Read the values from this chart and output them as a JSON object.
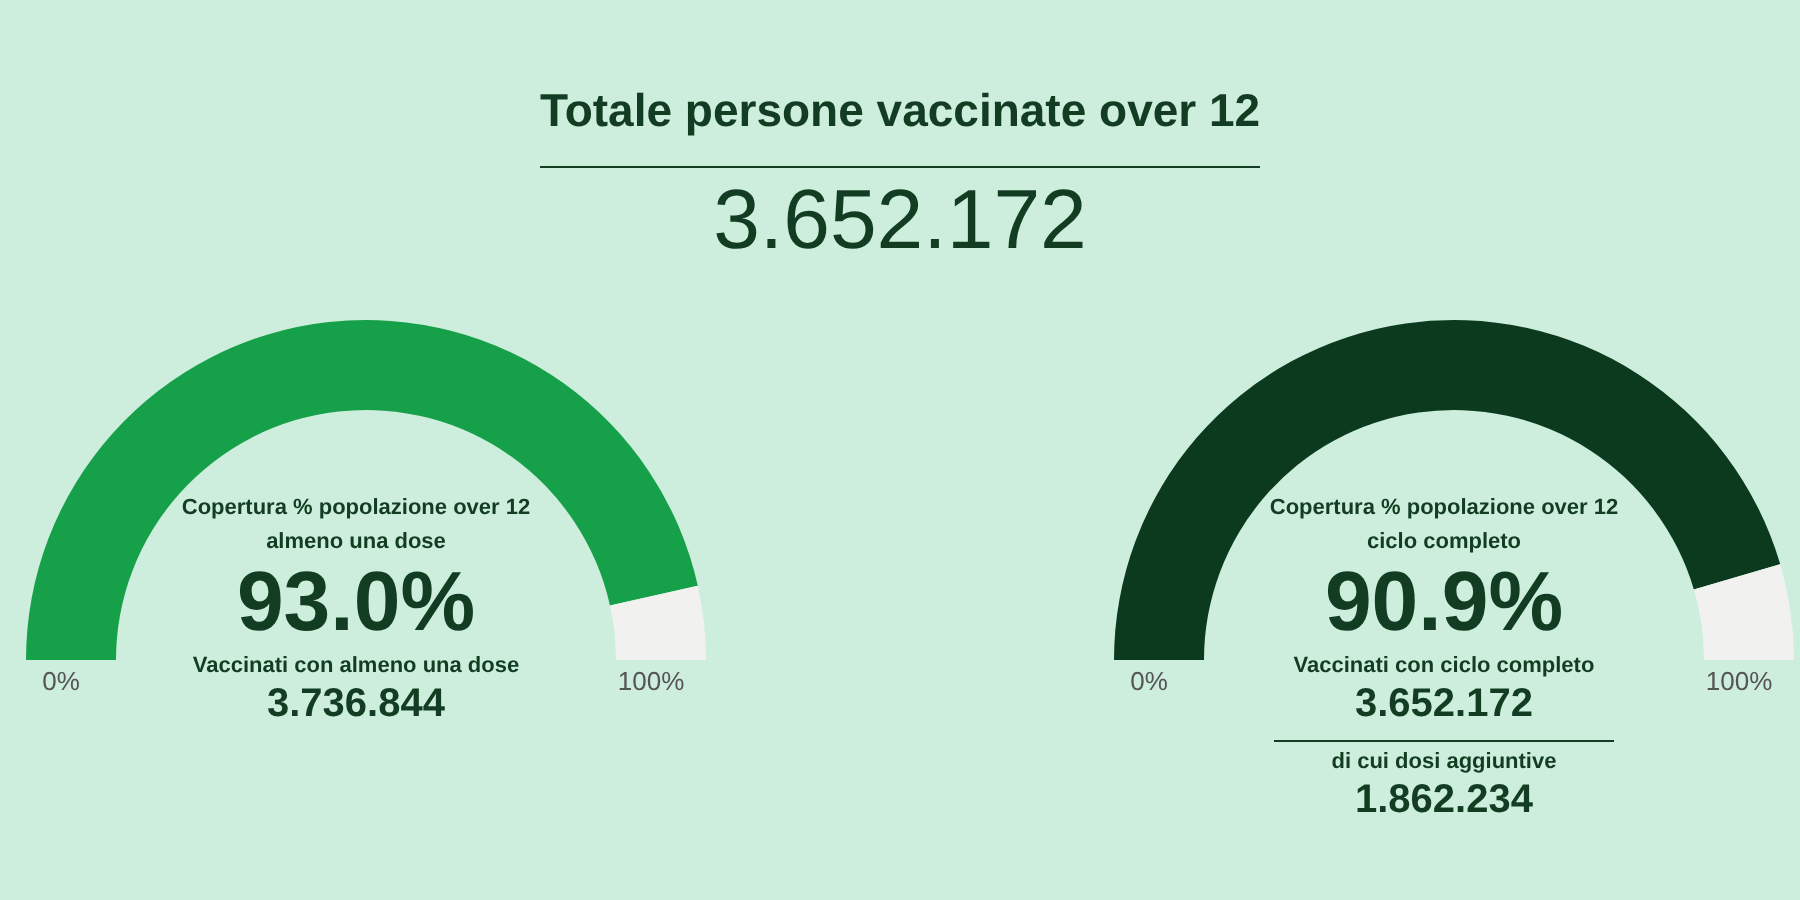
{
  "chart_data": [
    {
      "type": "other",
      "title": "Totale persone vaccinate over 12",
      "annotations": [
        "3.652.172"
      ]
    },
    {
      "type": "donut",
      "title": "Copertura % popolazione over 12",
      "subtitle": "almeno una dose",
      "categories": [
        null,
        null
      ],
      "values": [
        93.0,
        7.0
      ],
      "colors": [
        "#17a04a",
        "#f1f1ef"
      ],
      "value_labels": [
        "93.0%",
        null
      ],
      "annotations": [
        "0%",
        "100%",
        "Vaccinati con almeno una dose",
        "3.736.844"
      ]
    },
    {
      "type": "donut",
      "title": "Copertura % popolazione over 12",
      "subtitle": "ciclo completo",
      "categories": [
        null,
        null
      ],
      "values": [
        90.9,
        9.1
      ],
      "colors": [
        "#0b3a1f",
        "#f1f1ef"
      ],
      "value_labels": [
        "90.9%",
        null
      ],
      "annotations": [
        "0%",
        "100%",
        "Vaccinati con ciclo completo",
        "3.652.172",
        "di cui dosi aggiuntive",
        "1.862.234"
      ]
    }
  ]
}
